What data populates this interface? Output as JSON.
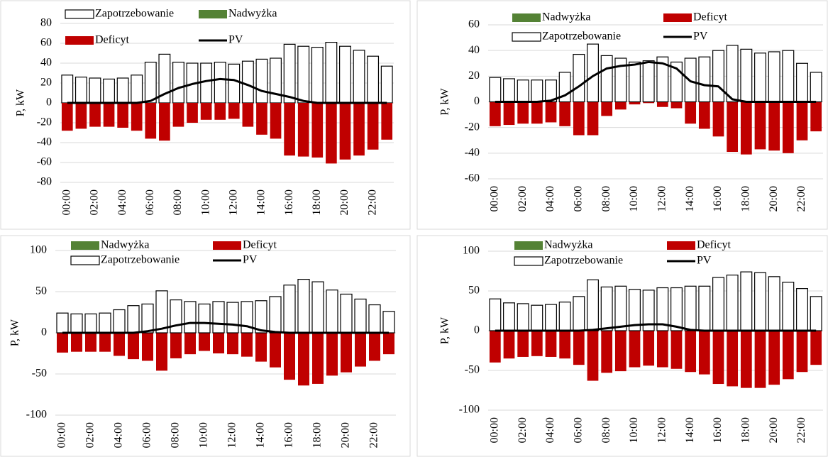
{
  "chart_data": [
    {
      "type": "bar",
      "y_label": "P, kW",
      "categories": [
        "00:00",
        null,
        "02:00",
        null,
        "04:00",
        null,
        "06:00",
        null,
        "08:00",
        null,
        "10:00",
        null,
        "12:00",
        null,
        "14:00",
        null,
        "16:00",
        null,
        "18:00",
        null,
        "20:00",
        null,
        "22:00",
        null
      ],
      "series": [
        {
          "name": "Zapotrzebowanie",
          "type": "bar",
          "color": "#ffffff",
          "values": [
            28,
            26,
            25,
            24,
            25,
            28,
            41,
            49,
            41,
            40,
            40,
            41,
            39,
            42,
            44,
            45,
            59,
            57,
            56,
            61,
            57,
            53,
            47,
            37
          ]
        },
        {
          "name": "Nadwyżka",
          "type": "bar",
          "color": "#548235",
          "values": [
            0,
            0,
            0,
            0,
            0,
            0,
            0,
            0,
            0,
            0,
            0,
            0,
            0,
            0,
            0,
            0,
            0,
            0,
            0,
            0,
            0,
            0,
            0,
            0
          ]
        },
        {
          "name": "Deficyt",
          "type": "bar",
          "color": "#c00000",
          "values": [
            -28,
            -26,
            -24,
            -24,
            -25,
            -28,
            -36,
            -38,
            -24,
            -20,
            -17,
            -17,
            -16,
            -24,
            -32,
            -36,
            -53,
            -54,
            -55,
            -61,
            -57,
            -53,
            -47,
            -37
          ]
        },
        {
          "name": "PV",
          "type": "line",
          "color": "#000000",
          "values": [
            0,
            0,
            0,
            0,
            0,
            0,
            2,
            9,
            15,
            19,
            22,
            24,
            23,
            18,
            12,
            9,
            6,
            2,
            0,
            0,
            0,
            0,
            0,
            0
          ]
        }
      ],
      "ylim": [
        -80,
        80
      ],
      "yticks": [
        -80,
        -60,
        -40,
        -20,
        0,
        20,
        40,
        60,
        80
      ]
    },
    {
      "type": "bar",
      "y_label": "P, kW",
      "categories": [
        "00:00",
        null,
        "02:00",
        null,
        "04:00",
        null,
        "06:00",
        null,
        "08:00",
        null,
        "10:00",
        null,
        "12:00",
        null,
        "14:00",
        null,
        "16:00",
        null,
        "18:00",
        null,
        "20:00",
        null,
        "22:00",
        null
      ],
      "series": [
        {
          "name": "Nadwyżka",
          "type": "bar",
          "color": "#548235",
          "values": [
            0,
            0,
            0,
            0,
            0,
            0,
            0,
            0,
            0,
            0,
            0,
            0,
            0,
            0,
            0,
            0,
            0,
            0,
            0,
            0,
            0,
            0,
            0,
            0
          ]
        },
        {
          "name": "Deficyt",
          "type": "bar",
          "color": "#c00000",
          "values": [
            -19,
            -18,
            -17,
            -17,
            -16,
            -19,
            -26,
            -26,
            -11,
            -6,
            -2,
            -1,
            -4,
            -5,
            -17,
            -21,
            -27,
            -39,
            -41,
            -37,
            -38,
            -40,
            -30,
            -23
          ]
        },
        {
          "name": "Zapotrzebowanie",
          "type": "bar",
          "color": "#ffffff",
          "values": [
            19,
            18,
            17,
            17,
            17,
            23,
            37,
            45,
            36,
            34,
            31,
            32,
            35,
            31,
            34,
            35,
            40,
            44,
            41,
            38,
            39,
            40,
            30,
            23
          ]
        },
        {
          "name": "PV",
          "type": "line",
          "color": "#000000",
          "values": [
            0,
            0,
            0,
            0,
            1,
            5,
            12,
            20,
            26,
            28,
            29,
            31,
            30,
            26,
            16,
            13,
            12,
            2,
            0,
            0,
            0,
            0,
            0,
            0
          ]
        }
      ],
      "ylim": [
        -60,
        60
      ],
      "yticks": [
        -60,
        -40,
        -20,
        0,
        20,
        40,
        60
      ]
    },
    {
      "type": "bar",
      "y_label": "P, kW",
      "categories": [
        "00:00",
        null,
        "02:00",
        null,
        "04:00",
        null,
        "06:00",
        null,
        "08:00",
        null,
        "10:00",
        null,
        "12:00",
        null,
        "14:00",
        null,
        "16:00",
        null,
        "18:00",
        null,
        "20:00",
        null,
        "22:00",
        null
      ],
      "series": [
        {
          "name": "Nadwyżka",
          "type": "bar",
          "color": "#548235",
          "values": [
            0,
            0,
            0,
            0,
            0,
            0,
            0,
            0,
            0,
            0,
            0,
            0,
            0,
            0,
            0,
            0,
            0,
            0,
            0,
            0,
            0,
            0,
            0,
            0
          ]
        },
        {
          "name": "Deficyt",
          "type": "bar",
          "color": "#c00000",
          "values": [
            -24,
            -23,
            -23,
            -23,
            -28,
            -32,
            -34,
            -46,
            -31,
            -26,
            -22,
            -25,
            -26,
            -29,
            -35,
            -42,
            -57,
            -64,
            -62,
            -52,
            -48,
            -41,
            -34,
            -26
          ]
        },
        {
          "name": "Zapotrzebowanie",
          "type": "bar",
          "color": "#ffffff",
          "values": [
            24,
            23,
            23,
            24,
            28,
            33,
            35,
            51,
            40,
            38,
            35,
            38,
            37,
            38,
            39,
            44,
            58,
            65,
            62,
            52,
            47,
            41,
            34,
            26
          ]
        },
        {
          "name": "PV",
          "type": "line",
          "color": "#000000",
          "values": [
            0,
            0,
            0,
            0,
            0,
            0,
            2,
            5,
            9,
            12,
            12,
            11,
            10,
            8,
            3,
            1,
            0,
            0,
            0,
            0,
            0,
            0,
            0,
            0
          ]
        }
      ],
      "ylim": [
        -100,
        100
      ],
      "yticks": [
        -100,
        -50,
        0,
        50,
        100
      ]
    },
    {
      "type": "bar",
      "y_label": "P, kW",
      "categories": [
        "00:00",
        null,
        "02:00",
        null,
        "04:00",
        null,
        "06:00",
        null,
        "08:00",
        null,
        "10:00",
        null,
        "12:00",
        null,
        "14:00",
        null,
        "16:00",
        null,
        "18:00",
        null,
        "20:00",
        null,
        "22:00",
        null
      ],
      "series": [
        {
          "name": "Nadwyżka",
          "type": "bar",
          "color": "#548235",
          "values": [
            0,
            0,
            0,
            0,
            0,
            0,
            0,
            0,
            0,
            0,
            0,
            0,
            0,
            0,
            0,
            0,
            0,
            0,
            0,
            0,
            0,
            0,
            0,
            0
          ]
        },
        {
          "name": "Deficyt",
          "type": "bar",
          "color": "#c00000",
          "values": [
            -40,
            -35,
            -33,
            -32,
            -33,
            -35,
            -43,
            -63,
            -53,
            -51,
            -46,
            -44,
            -46,
            -48,
            -52,
            -55,
            -67,
            -70,
            -72,
            -72,
            -68,
            -61,
            -52,
            -43
          ]
        },
        {
          "name": "Zapotrzebowanie",
          "type": "bar",
          "color": "#ffffff",
          "values": [
            40,
            35,
            34,
            32,
            33,
            36,
            43,
            64,
            55,
            56,
            52,
            51,
            54,
            54,
            56,
            56,
            67,
            70,
            74,
            73,
            68,
            61,
            53,
            43
          ]
        },
        {
          "name": "PV",
          "type": "line",
          "color": "#000000",
          "values": [
            0,
            0,
            0,
            0,
            0,
            0,
            0,
            1,
            3,
            5,
            7,
            8,
            8,
            5,
            1,
            0,
            0,
            0,
            0,
            0,
            0,
            0,
            0,
            0
          ]
        }
      ],
      "ylim": [
        -100,
        100
      ],
      "yticks": [
        -100,
        -50,
        0,
        50,
        100
      ]
    }
  ]
}
